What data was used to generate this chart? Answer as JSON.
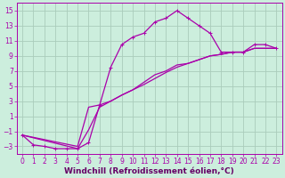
{
  "xlabel": "Windchill (Refroidissement éolien,°C)",
  "bg_color": "#cceedd",
  "grid_color": "#aaccbb",
  "line_color": "#aa00aa",
  "xlim": [
    -0.5,
    23.5
  ],
  "ylim": [
    -4,
    16
  ],
  "xticks": [
    0,
    1,
    2,
    3,
    4,
    5,
    6,
    7,
    8,
    9,
    10,
    11,
    12,
    13,
    14,
    15,
    16,
    17,
    18,
    19,
    20,
    21,
    22,
    23
  ],
  "yticks": [
    -3,
    -1,
    1,
    3,
    5,
    7,
    9,
    11,
    13,
    15
  ],
  "line1_x": [
    0,
    1,
    2,
    3,
    4,
    5,
    6,
    7,
    8,
    9,
    10,
    11,
    12,
    13,
    14,
    15,
    16,
    17,
    18,
    19,
    20,
    21,
    22,
    23
  ],
  "line1_y": [
    -1.5,
    -2.8,
    -3.0,
    -3.3,
    -3.3,
    -3.3,
    -2.5,
    2.5,
    7.5,
    10.5,
    11.5,
    12.0,
    13.5,
    14.0,
    15.0,
    14.0,
    13.0,
    12.0,
    9.5,
    9.5,
    9.5,
    10.5,
    10.5,
    10.0
  ],
  "line2_x": [
    0,
    5,
    6,
    7,
    8,
    9,
    10,
    11,
    12,
    13,
    14,
    15,
    16,
    17,
    18,
    19,
    20,
    21,
    22,
    23
  ],
  "line2_y": [
    -1.5,
    -3.0,
    2.2,
    2.5,
    3.0,
    3.8,
    4.5,
    5.2,
    6.0,
    6.8,
    7.5,
    8.0,
    8.5,
    9.0,
    9.2,
    9.5,
    9.5,
    10.0,
    10.0,
    10.0
  ],
  "line3_x": [
    0,
    5,
    6,
    7,
    8,
    9,
    10,
    11,
    12,
    13,
    14,
    15,
    16,
    17,
    18,
    19,
    20,
    21,
    22,
    23
  ],
  "line3_y": [
    -1.5,
    -3.3,
    -0.8,
    2.2,
    3.0,
    3.8,
    4.5,
    5.5,
    6.5,
    7.0,
    7.8,
    8.0,
    8.5,
    9.0,
    9.2,
    9.5,
    9.5,
    10.0,
    10.0,
    10.0
  ],
  "font_color": "#aa00aa",
  "tick_fontsize": 5.5,
  "label_fontsize": 6.5,
  "axis_label_color": "#660066"
}
